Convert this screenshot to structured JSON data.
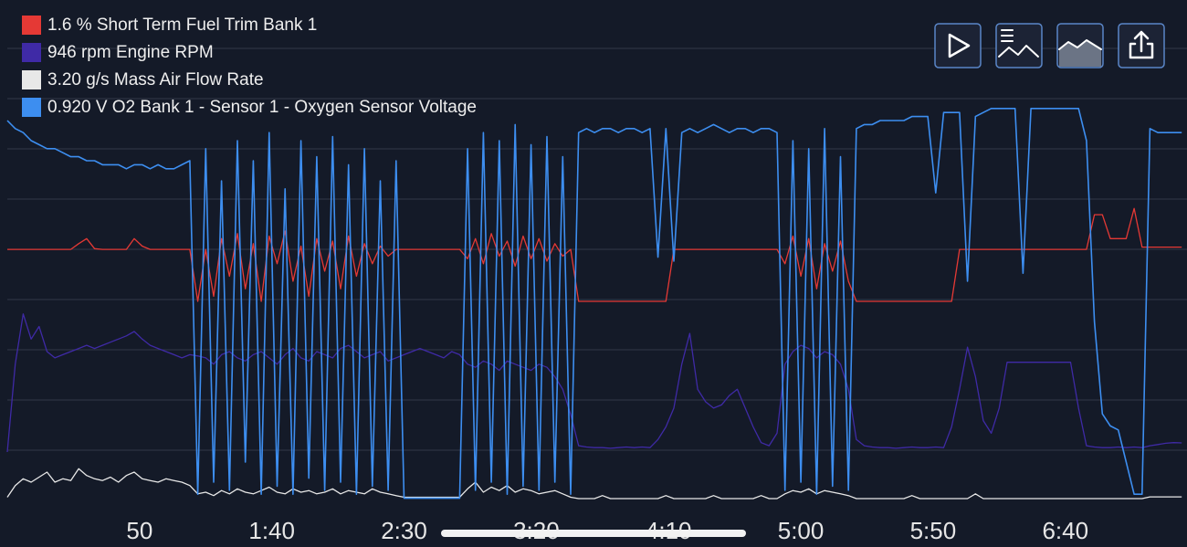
{
  "chart_data": {
    "type": "line",
    "x": [
      0,
      3,
      6,
      9,
      12,
      15,
      18,
      21,
      24,
      27,
      30,
      33,
      36,
      39,
      42,
      45,
      48,
      51,
      54,
      57,
      60,
      63,
      66,
      69,
      72,
      75,
      78,
      81,
      84,
      87,
      90,
      93,
      96,
      99,
      102,
      105,
      108,
      111,
      114,
      117,
      120,
      123,
      126,
      129,
      132,
      135,
      138,
      141,
      144,
      147,
      150,
      153,
      156,
      159,
      162,
      165,
      168,
      171,
      174,
      177,
      180,
      183,
      186,
      189,
      192,
      195,
      198,
      201,
      204,
      207,
      210,
      213,
      216,
      219,
      222,
      225,
      228,
      231,
      234,
      237,
      240,
      243,
      246,
      249,
      252,
      255,
      258,
      261,
      264,
      267,
      270,
      273,
      276,
      279,
      282,
      285,
      288,
      291,
      294,
      297,
      300,
      303,
      306,
      309,
      312,
      315,
      318,
      321,
      324,
      327,
      330,
      333,
      336,
      339,
      342,
      345,
      348,
      351,
      354,
      357,
      360,
      363,
      366,
      369,
      372,
      375,
      378,
      381,
      384,
      387,
      390,
      393,
      396,
      399,
      402,
      405,
      408,
      411,
      414,
      417,
      420,
      423,
      426,
      429,
      432,
      435,
      438,
      441,
      444
    ],
    "xlim": [
      0,
      446
    ],
    "xticks": [
      50,
      {
        "value": 100,
        "label": "1:40"
      },
      {
        "value": 150,
        "label": "2:30"
      },
      {
        "value": 200,
        "label": "3:20"
      },
      {
        "value": 250,
        "label": "4:10"
      },
      {
        "value": 300,
        "label": "5:00"
      },
      {
        "value": 350,
        "label": "5:50"
      },
      {
        "value": 400,
        "label": "6:40"
      }
    ],
    "series": [
      {
        "name": "1.6 % Short Term Fuel Trim Bank 1",
        "color": "#e53935",
        "ylim": [
          -100,
          100
        ],
        "values": [
          0.7,
          0.7,
          0.7,
          0.7,
          0.7,
          0.7,
          0.7,
          0.7,
          0.7,
          3,
          5,
          1,
          0.7,
          0.7,
          0.7,
          0.7,
          5,
          2,
          0.7,
          0.7,
          0.7,
          0.7,
          0.7,
          0.7,
          -20,
          0.7,
          -18,
          5,
          -10,
          7,
          -15,
          3,
          -20,
          6,
          -5,
          8,
          -12,
          2,
          -18,
          5,
          -8,
          4,
          -15,
          6,
          -10,
          3,
          -5,
          2,
          -2,
          0.7,
          0.7,
          0.7,
          0.7,
          0.7,
          0.7,
          0.7,
          0.7,
          0.7,
          -3,
          5,
          -5,
          7,
          -2,
          4,
          -6,
          6,
          -3,
          5,
          -4,
          3,
          -2,
          0.7,
          -20,
          -20,
          -20,
          -20,
          -20,
          -20,
          -20,
          -20,
          -20,
          -20,
          -20,
          -20,
          0.7,
          0.7,
          0.7,
          0.7,
          0.7,
          0.7,
          0.7,
          0.7,
          0.7,
          0.7,
          0.7,
          0.7,
          0.7,
          0.7,
          -5,
          6,
          -10,
          5,
          -15,
          3,
          -8,
          4,
          -12,
          -20,
          -20,
          -20,
          -20,
          -20,
          -20,
          -20,
          -20,
          -20,
          -20,
          -20,
          -20,
          -20,
          0.7,
          0.7,
          0.7,
          0.7,
          0.7,
          0.7,
          0.7,
          0.7,
          0.7,
          0.7,
          0.7,
          0.7,
          0.7,
          0.7,
          0.7,
          0.7,
          0.7,
          14.5,
          14.5,
          5,
          5,
          5,
          17,
          1.6,
          1.6,
          1.6,
          1.6,
          1.6,
          1.6
        ]
      },
      {
        "name": "946 rpm Engine RPM",
        "color": "#3f2aa6",
        "ylim": [
          0,
          8000
        ],
        "values": [
          800,
          2200,
          3000,
          2600,
          2800,
          2400,
          2300,
          2350,
          2400,
          2450,
          2500,
          2450,
          2500,
          2550,
          2600,
          2650,
          2720,
          2600,
          2500,
          2450,
          2400,
          2350,
          2300,
          2350,
          2330,
          2300,
          2200,
          2350,
          2400,
          2300,
          2250,
          2350,
          2400,
          2300,
          2200,
          2350,
          2450,
          2300,
          2250,
          2400,
          2350,
          2300,
          2450,
          2500,
          2400,
          2300,
          2350,
          2400,
          2250,
          2300,
          2350,
          2400,
          2450,
          2400,
          2350,
          2300,
          2400,
          2350,
          2200,
          2150,
          2250,
          2200,
          2100,
          2250,
          2200,
          2150,
          2100,
          2200,
          2150,
          2000,
          1800,
          1400,
          900,
          880,
          870,
          870,
          860,
          870,
          880,
          870,
          880,
          870,
          1000,
          1200,
          1500,
          2200,
          2690,
          1800,
          1600,
          1500,
          1550,
          1700,
          1800,
          1500,
          1200,
          950,
          900,
          1100,
          2200,
          2400,
          2500,
          2450,
          2300,
          2400,
          2350,
          2200,
          1800,
          1000,
          900,
          880,
          870,
          870,
          860,
          870,
          880,
          870,
          870,
          880,
          870,
          1200,
          1800,
          2470,
          2000,
          1300,
          1100,
          1500,
          2230,
          2230,
          2230,
          2230,
          2230,
          2230,
          2230,
          2230,
          2230,
          1500,
          900,
          880,
          870,
          870,
          880,
          870,
          880,
          870,
          900,
          920,
          940,
          950,
          946
        ]
      },
      {
        "name": "3.20 g/s Mass Air Flow Rate",
        "color": "#e8e8e8",
        "ylim": [
          0,
          300
        ],
        "values": [
          3,
          10,
          14,
          12,
          15,
          18,
          12,
          14,
          13,
          20,
          16,
          14,
          13,
          15,
          12,
          16,
          18,
          14,
          13,
          12,
          14,
          13,
          12,
          10,
          5,
          6,
          4,
          7,
          5,
          8,
          6,
          5,
          7,
          9,
          6,
          5,
          8,
          6,
          7,
          5,
          6,
          8,
          5,
          7,
          6,
          5,
          8,
          6,
          5,
          4,
          3,
          3,
          3,
          3,
          3,
          3,
          3,
          3,
          8,
          12,
          6,
          9,
          7,
          10,
          6,
          8,
          7,
          5,
          6,
          7,
          5,
          3,
          2.2,
          2.2,
          2.2,
          4,
          2.2,
          2.2,
          2.2,
          2.2,
          2.2,
          2.2,
          2.2,
          4,
          2.2,
          2.2,
          2.2,
          2.2,
          2.2,
          4,
          2.2,
          2.2,
          2.2,
          2.2,
          2.2,
          4,
          2.2,
          2.2,
          5,
          7,
          6,
          8,
          5,
          7,
          6,
          5,
          4,
          2.2,
          2.2,
          2.2,
          2.2,
          2.2,
          2.2,
          2.2,
          4,
          2.2,
          2.2,
          2.2,
          2.2,
          2.2,
          2.2,
          2.2,
          5,
          2.2,
          2.2,
          2.2,
          2.2,
          2.2,
          2.2,
          2.2,
          2.2,
          2.2,
          2.2,
          2.2,
          2.2,
          2.2,
          2.2,
          2.2,
          2.2,
          2.2,
          2.2,
          2.2,
          2.2,
          2.2,
          3.2,
          3.2,
          3.2,
          3.2,
          3.2
        ]
      },
      {
        "name": "0.920 V O2 Bank 1 - Sensor 1 - Oxygen Sensor Voltage",
        "color": "#3d8ef0",
        "ylim": [
          0,
          1.25
        ],
        "values": [
          0.95,
          0.93,
          0.92,
          0.9,
          0.89,
          0.88,
          0.88,
          0.87,
          0.86,
          0.86,
          0.85,
          0.85,
          0.84,
          0.84,
          0.84,
          0.83,
          0.84,
          0.84,
          0.83,
          0.84,
          0.83,
          0.83,
          0.84,
          0.85,
          0.02,
          0.88,
          0.05,
          0.8,
          0.03,
          0.9,
          0.1,
          0.85,
          0.02,
          0.92,
          0.04,
          0.78,
          0.02,
          0.9,
          0.06,
          0.86,
          0.03,
          0.91,
          0.05,
          0.84,
          0.02,
          0.88,
          0.04,
          0.8,
          0.03,
          0.85,
          0.01,
          0.01,
          0.01,
          0.01,
          0.01,
          0.01,
          0.01,
          0.01,
          0.88,
          0.03,
          0.92,
          0.05,
          0.9,
          0.02,
          0.94,
          0.04,
          0.89,
          0.03,
          0.91,
          0.05,
          0.86,
          0.02,
          0.92,
          0.93,
          0.92,
          0.93,
          0.93,
          0.92,
          0.93,
          0.93,
          0.92,
          0.93,
          0.61,
          0.93,
          0.6,
          0.92,
          0.93,
          0.92,
          0.93,
          0.94,
          0.93,
          0.92,
          0.93,
          0.93,
          0.92,
          0.93,
          0.93,
          0.92,
          0.03,
          0.9,
          0.05,
          0.88,
          0.02,
          0.93,
          0.04,
          0.86,
          0.03,
          0.93,
          0.94,
          0.94,
          0.95,
          0.95,
          0.95,
          0.95,
          0.96,
          0.96,
          0.96,
          0.77,
          0.97,
          0.97,
          0.97,
          0.55,
          0.96,
          0.97,
          0.98,
          0.98,
          0.98,
          0.98,
          0.57,
          0.98,
          0.98,
          0.98,
          0.98,
          0.98,
          0.98,
          0.98,
          0.9,
          0.45,
          0.22,
          0.19,
          0.18,
          0.1,
          0.02,
          0.02,
          0.93,
          0.92,
          0.92,
          0.92,
          0.92
        ]
      }
    ]
  }
}
